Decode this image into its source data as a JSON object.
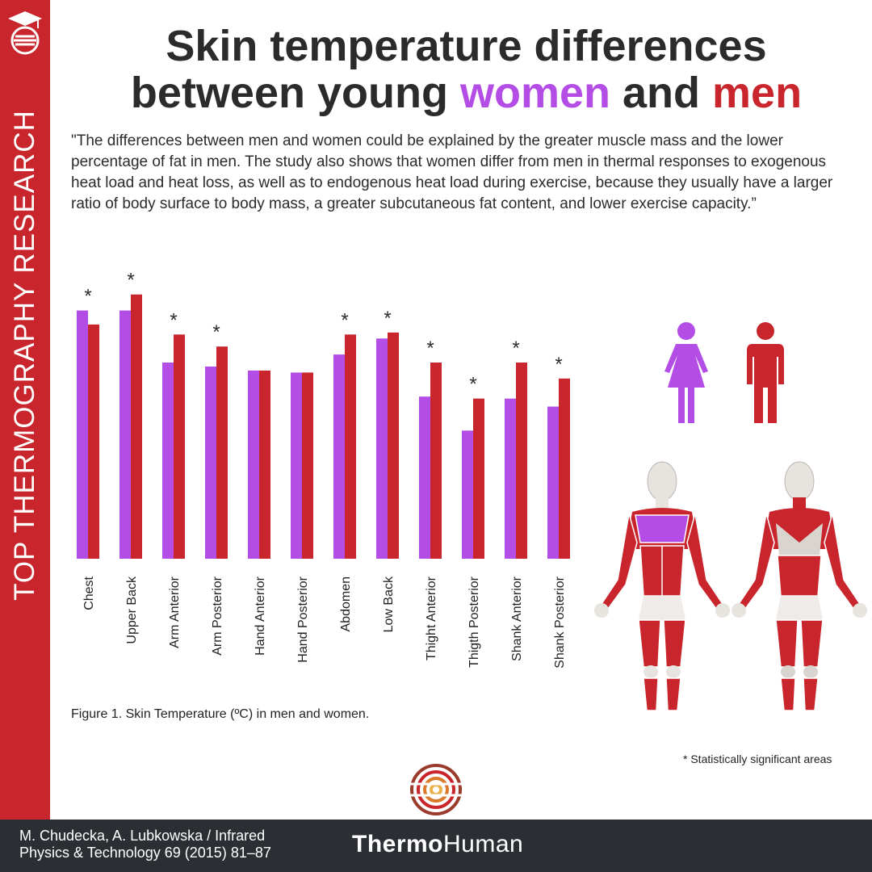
{
  "sidebar": {
    "text": "TOP THERMOGRAPHY RESEARCH"
  },
  "title": {
    "line1": "Skin temperature differences",
    "line2_prefix": "between young ",
    "women": "women",
    "middle": " and ",
    "men": "men"
  },
  "quote": "\"The differences between men and women could be explained by the greater muscle mass and the lower percentage of fat in men. The study also shows that women differ from men in thermal responses to exogenous heat load and heat loss, as well as to endogenous heat load during exercise, because they usually have a larger ratio of body surface to body mass, a greater subcutaneous fat content, and lower exercise capacity.”",
  "caption": "Figure 1. Skin Temperature (ºC) in men and women.",
  "significance_note": "* Statistically significant areas",
  "footer": {
    "citation_line1": "M. Chudecka, A. Lubkowska / Infrared",
    "citation_line2": "Physics & Technology 69 (2015) 81–87",
    "brand_bold": "Thermo",
    "brand_regular": "Human"
  },
  "colors": {
    "women": "#b34de6",
    "men": "#c8252c",
    "banner": "#c8252c",
    "footer": "#2b2f33"
  },
  "chart_data": {
    "type": "bar",
    "categories": [
      "Chest",
      "Upper Back",
      "Arm Anterior",
      "Arm Posterior",
      "Hand Anterior",
      "Hand Posterior",
      "Abdomen",
      "Low Back",
      "Thight Anterior",
      "Thigth Posterior",
      "Shank Anterior",
      "Shank Posterior"
    ],
    "series": [
      {
        "color": "#b34de6",
        "values": [
          33.9,
          33.9,
          32.6,
          32.5,
          32.4,
          32.35,
          32.8,
          33.2,
          31.75,
          30.9,
          31.7,
          31.5
        ]
      },
      {
        "color": "#c8252c",
        "values": [
          33.55,
          34.3,
          33.3,
          33.0,
          32.4,
          32.35,
          33.3,
          33.35,
          32.6,
          31.7,
          32.6,
          32.2
        ]
      }
    ],
    "significant": [
      true,
      true,
      true,
      true,
      false,
      false,
      true,
      true,
      true,
      true,
      true,
      true
    ],
    "significance_marker": "*",
    "title": "",
    "xlabel": "",
    "ylabel": "",
    "ylim": [
      27.7,
      35
    ],
    "axes_visible": false,
    "grid": false
  }
}
